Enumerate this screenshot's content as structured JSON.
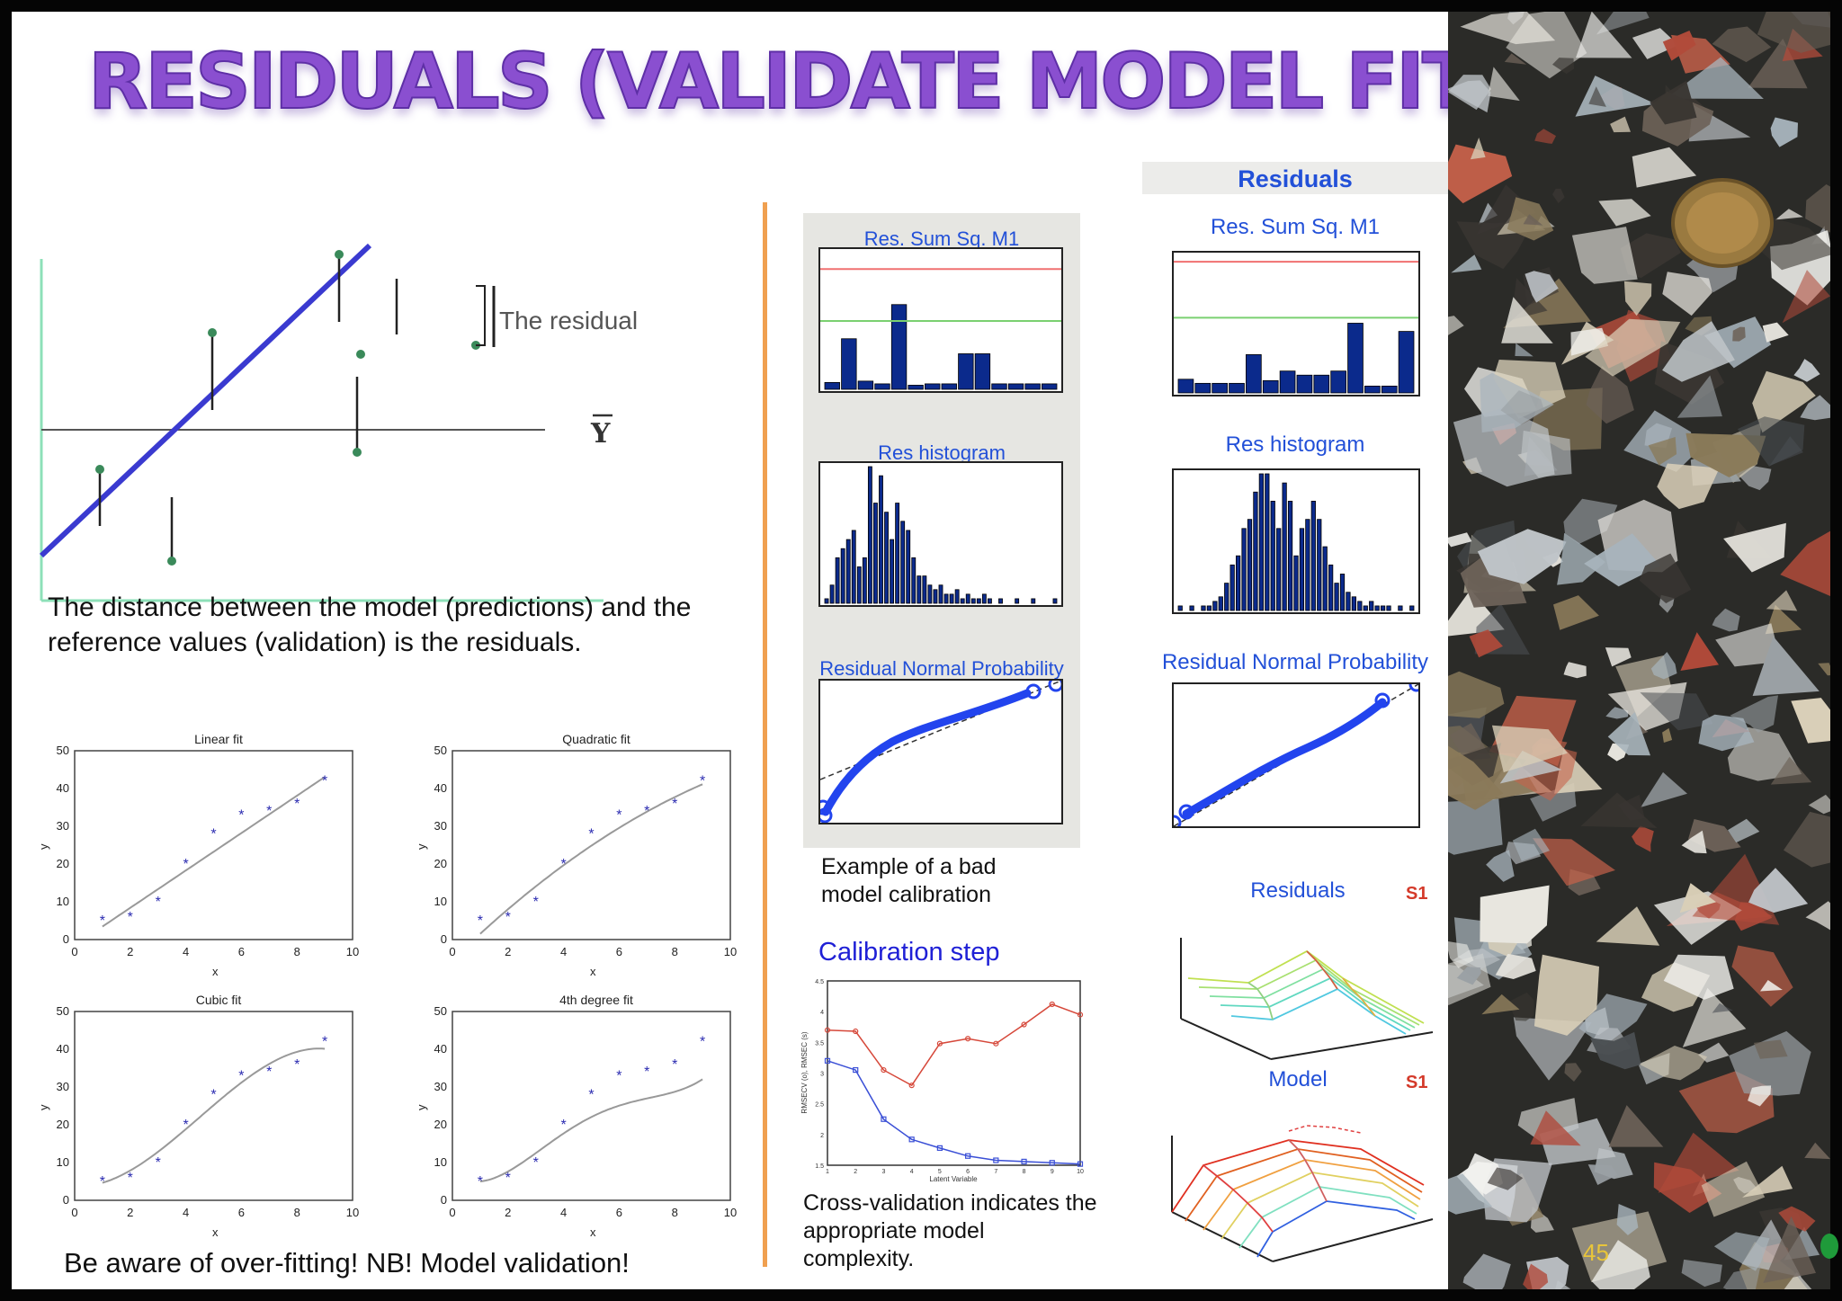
{
  "slide": {
    "title": "RESIDUALS (VALIDATE MODEL FIT)",
    "page_number": "45"
  },
  "residual_diagram": {
    "annotation": "The residual",
    "mean_label": "Y"
  },
  "explanation": "The distance between the model (predictions) and the reference values (validation) is the residuals.",
  "fit_plots": {
    "titles": [
      "Linear fit",
      "Quadratic fit",
      "Cubic fit",
      "4th degree fit"
    ],
    "x_label": "x",
    "y_label": "y",
    "y_ticks": [
      "50",
      "40",
      "30",
      "20",
      "10",
      "0"
    ],
    "x_ticks": [
      "0",
      "2",
      "4",
      "6",
      "8",
      "10"
    ],
    "points_x": [
      1,
      2,
      3,
      4,
      5,
      6,
      7,
      8,
      9
    ],
    "points_y": [
      5,
      6,
      10,
      20,
      28,
      33,
      34,
      36,
      42
    ]
  },
  "warning": "Be aware of over-fitting! NB! Model validation!",
  "bad_model": {
    "panel1_title": "Res. Sum Sq. M1",
    "panel2_title": "Res histogram",
    "panel3_title": "Residual Normal Probability",
    "caption": "Example of a bad model calibration"
  },
  "good_model": {
    "header": "Residuals",
    "panel1_title": "Res. Sum Sq. M1",
    "panel2_title": "Res histogram",
    "panel3_title": "Residual Normal Probability",
    "panel4_title": "Residuals",
    "panel5_title": "Model",
    "s1_label": "S1"
  },
  "calibration": {
    "title": "Calibration step",
    "x_label": "Latent Variable",
    "y_label": "RMSECV (o), RMSEC (s)",
    "caption": "Cross-validation indicates the appropriate model complexity."
  },
  "chart_data": [
    {
      "type": "scatter",
      "title": "Linear fit",
      "x": [
        1,
        2,
        3,
        4,
        5,
        6,
        7,
        8,
        9
      ],
      "y": [
        5,
        6,
        10,
        20,
        28,
        33,
        34,
        36,
        42
      ],
      "xlim": [
        0,
        10
      ],
      "ylim": [
        0,
        50
      ],
      "xlabel": "x",
      "ylabel": "y"
    },
    {
      "type": "scatter",
      "title": "Quadratic fit",
      "x": [
        1,
        2,
        3,
        4,
        5,
        6,
        7,
        8,
        9
      ],
      "y": [
        5,
        6,
        10,
        20,
        28,
        33,
        34,
        36,
        42
      ],
      "xlim": [
        0,
        10
      ],
      "ylim": [
        0,
        50
      ],
      "xlabel": "x",
      "ylabel": "y"
    },
    {
      "type": "scatter",
      "title": "Cubic fit",
      "x": [
        1,
        2,
        3,
        4,
        5,
        6,
        7,
        8,
        9
      ],
      "y": [
        5,
        6,
        10,
        20,
        28,
        33,
        34,
        36,
        42
      ],
      "xlim": [
        0,
        10
      ],
      "ylim": [
        0,
        50
      ],
      "xlabel": "x",
      "ylabel": "y"
    },
    {
      "type": "scatter",
      "title": "4th degree fit",
      "x": [
        1,
        2,
        3,
        4,
        5,
        6,
        7,
        8,
        9
      ],
      "y": [
        5,
        6,
        10,
        20,
        28,
        33,
        34,
        36,
        42
      ],
      "xlim": [
        0,
        10
      ],
      "ylim": [
        0,
        50
      ],
      "xlabel": "x",
      "ylabel": "y"
    },
    {
      "type": "line",
      "title": "Calibration step",
      "xlabel": "Latent Variable",
      "ylabel": "RMSECV (o), RMSEC (s)",
      "x": [
        1,
        2,
        3,
        4,
        5,
        6,
        7,
        8,
        9,
        10
      ],
      "xlim": [
        1,
        10
      ],
      "ylim": [
        1.5,
        4.5
      ],
      "x_ticks": [
        "1",
        "2",
        "3",
        "4",
        "5",
        "6",
        "7",
        "8",
        "9",
        "10"
      ],
      "y_ticks": [
        "4.5",
        "4",
        "3.5",
        "3",
        "2.5",
        "2",
        "1.5"
      ],
      "series": [
        {
          "values": [
            3.7,
            3.68,
            3.05,
            2.8,
            3.48,
            3.56,
            3.48,
            3.79,
            4.12,
            3.95
          ],
          "color": "#d6483a"
        },
        {
          "values": [
            3.2,
            3.05,
            2.25,
            1.92,
            1.78,
            1.65,
            1.58,
            1.56,
            1.54,
            1.52
          ],
          "color": "#3a4fd6"
        }
      ]
    },
    {
      "type": "bar",
      "title": "Res. Sum Sq. M1",
      "values": [
        0.5,
        3.7,
        0.6,
        0.4,
        6.2,
        0.3,
        0.4,
        0.4,
        2.6,
        2.6,
        0.4,
        0.4,
        0.4,
        0.4
      ],
      "ylim": [
        0,
        10
      ],
      "ref_lines": [
        {
          "value": 8.8,
          "color": "#f07070"
        },
        {
          "value": 5.0,
          "color": "#7ad070"
        }
      ]
    },
    {
      "type": "bar",
      "title": "Res histogram",
      "values": [
        1,
        4,
        10,
        12,
        14,
        16,
        8,
        10,
        30,
        22,
        28,
        20,
        14,
        22,
        18,
        16,
        10,
        6,
        6,
        4,
        3,
        4,
        2,
        2,
        3,
        1,
        2,
        1,
        1,
        2,
        1,
        0,
        1,
        0,
        0,
        1,
        0,
        0,
        1,
        0,
        0,
        0,
        1
      ],
      "ylim": [
        0,
        30
      ]
    },
    {
      "type": "scatter",
      "title": "Residual Normal Probability"
    },
    {
      "type": "bar",
      "title": "Res. Sum Sq. M1",
      "values": [
        1,
        0.7,
        0.7,
        0.7,
        2.8,
        0.9,
        1.6,
        1.3,
        1.3,
        1.6,
        5.1,
        0.5,
        0.5,
        4.5
      ],
      "ylim": [
        0,
        10
      ],
      "ref_lines": [
        {
          "value": 9.6,
          "color": "#f07070"
        },
        {
          "value": 5.5,
          "color": "#7ad070"
        }
      ]
    },
    {
      "type": "bar",
      "title": "Res histogram",
      "values": [
        1,
        0,
        1,
        0,
        1,
        1,
        2,
        3,
        6,
        10,
        12,
        18,
        20,
        26,
        30,
        30,
        24,
        18,
        28,
        24,
        12,
        18,
        20,
        24,
        20,
        14,
        10,
        6,
        8,
        4,
        3,
        2,
        1,
        2,
        1,
        1,
        1,
        0,
        1,
        0,
        1
      ],
      "ylim": [
        0,
        30
      ]
    },
    {
      "type": "scatter",
      "title": "Residual Normal Probability"
    }
  ],
  "colors": {
    "title_purple": "#8a4fd0",
    "panel_blue": "#2250d8",
    "bar_navy": "#0b2a8c",
    "fit_line": "#4a4ad6",
    "divider_orange": "#f0a050",
    "s1_red": "#d43a2a",
    "page_number": "#e8c53a"
  }
}
